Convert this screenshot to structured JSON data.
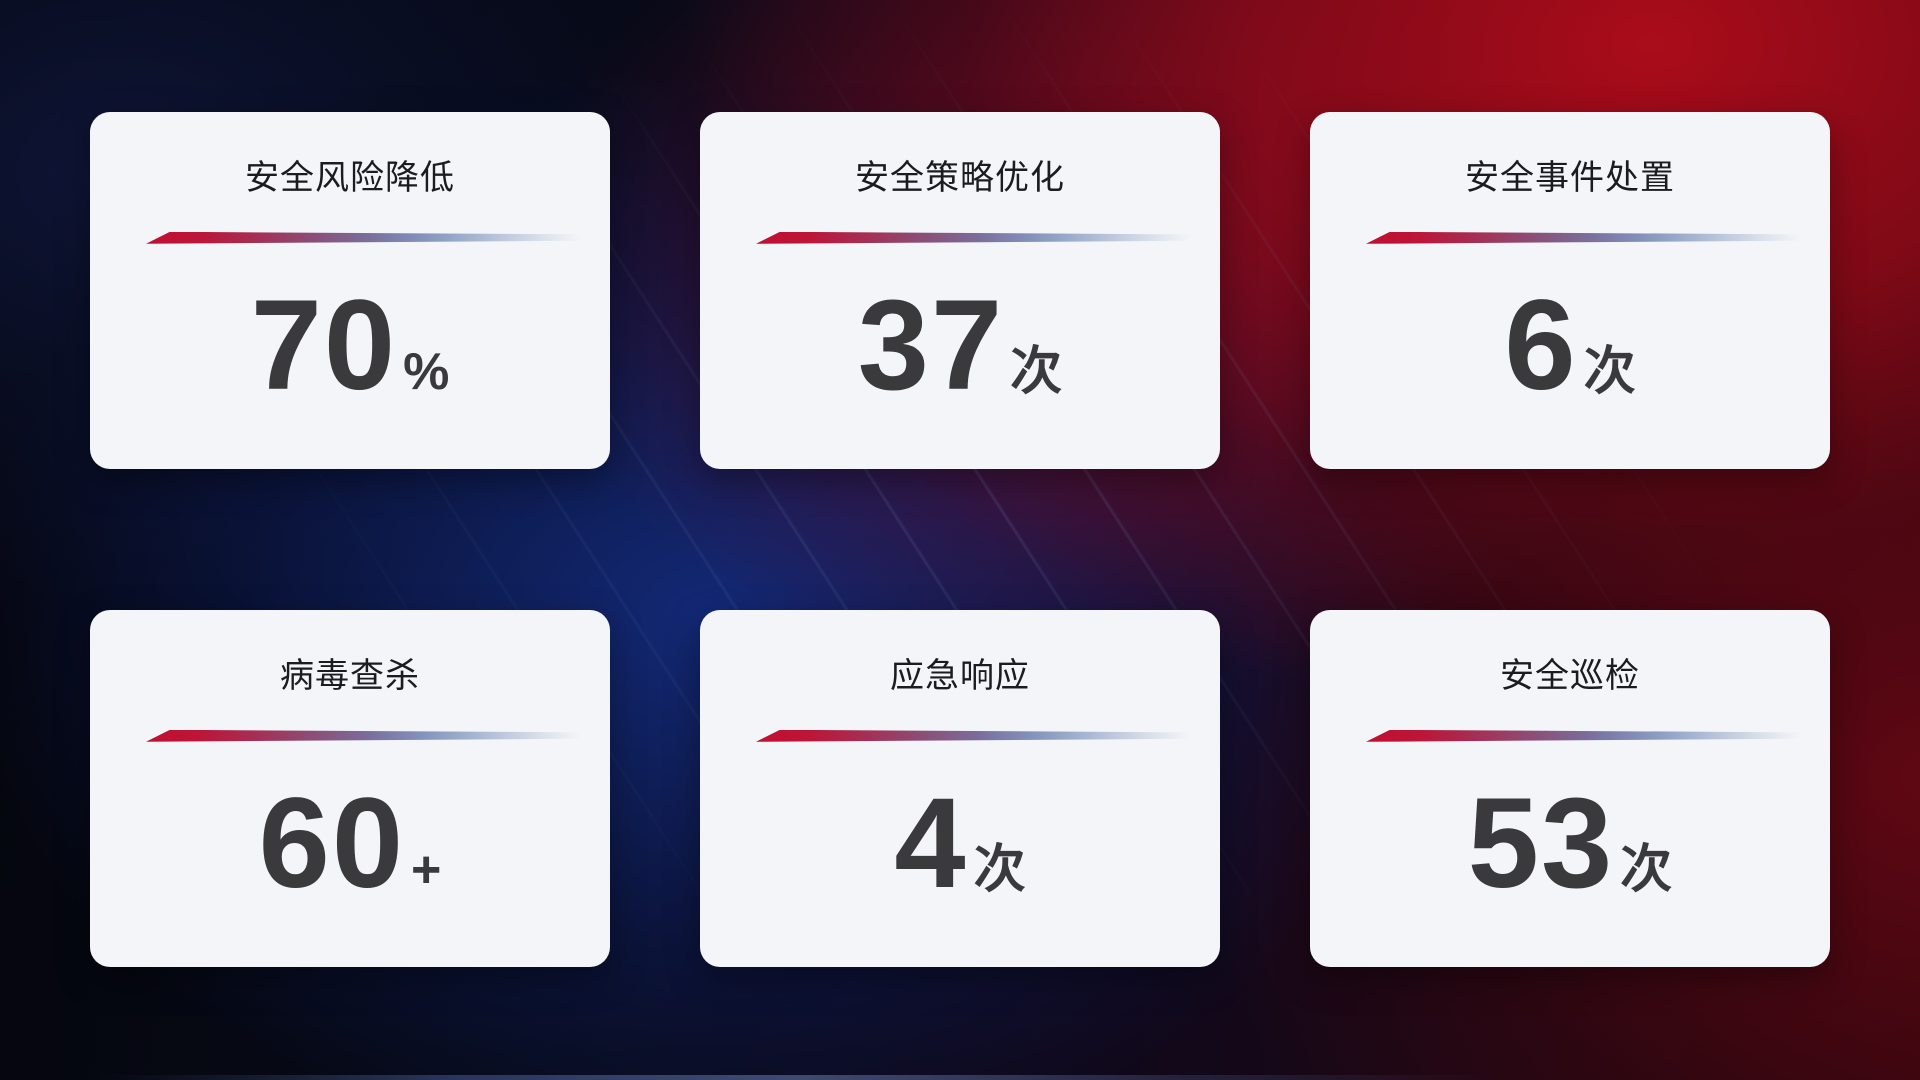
{
  "theme": {
    "accent_red": "#c20e31",
    "accent_slate_blue": "#8292bb",
    "card_background": "#f4f5f8",
    "value_text_color": "#3a3a3d",
    "title_text_color": "#1c1c1f"
  },
  "cards": [
    {
      "title": "安全风险降低",
      "value": "70",
      "unit": "%"
    },
    {
      "title": "安全策略优化",
      "value": "37",
      "unit": "次"
    },
    {
      "title": "安全事件处置",
      "value": "6",
      "unit": "次"
    },
    {
      "title": "病毒查杀",
      "value": "60",
      "unit": "+"
    },
    {
      "title": "应急响应",
      "value": "4",
      "unit": "次"
    },
    {
      "title": "安全巡检",
      "value": "53",
      "unit": "次"
    }
  ]
}
